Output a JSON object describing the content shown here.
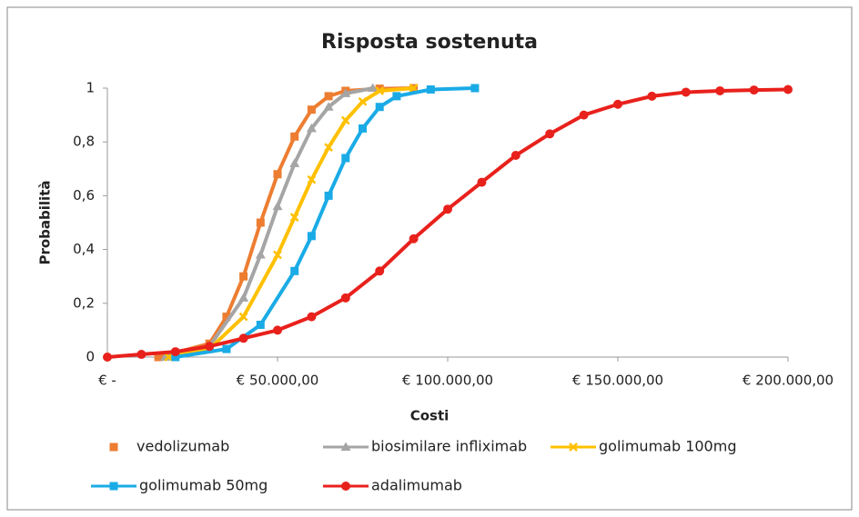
{
  "chart_data": {
    "type": "line",
    "title": "Risposta sostenuta",
    "xlabel": "Costi",
    "ylabel": "Probabilità",
    "xlim": [
      0,
      200000
    ],
    "ylim": [
      0,
      1
    ],
    "xticks": [
      {
        "value": 0,
        "label": "€ -"
      },
      {
        "value": 50000,
        "label": "€ 50.000,00"
      },
      {
        "value": 100000,
        "label": "€ 100.000,00"
      },
      {
        "value": 150000,
        "label": "€ 150.000,00"
      },
      {
        "value": 200000,
        "label": "€ 200.000,00"
      }
    ],
    "yticks": [
      0,
      {
        "value": 0.2,
        "label": "0,2"
      },
      {
        "value": 0.4,
        "label": "0,4"
      },
      {
        "value": 0.6,
        "label": "0,6"
      },
      {
        "value": 0.8,
        "label": "0,8"
      },
      1
    ],
    "series": [
      {
        "name": "vedolizumab",
        "color": "#ed7d31",
        "marker": "square",
        "legend_line": false,
        "x": [
          15000,
          30000,
          35000,
          40000,
          45000,
          50000,
          55000,
          60000,
          65000,
          70000,
          80000,
          90000
        ],
        "values": [
          0,
          0.05,
          0.15,
          0.3,
          0.5,
          0.68,
          0.82,
          0.92,
          0.97,
          0.99,
          0.998,
          1
        ]
      },
      {
        "name": "biosimilare infliximab",
        "color": "#a5a5a5",
        "marker": "triangle",
        "legend_line": true,
        "x": [
          17000,
          30000,
          40000,
          45000,
          50000,
          55000,
          60000,
          65000,
          70000,
          78000
        ],
        "values": [
          0,
          0.04,
          0.22,
          0.38,
          0.56,
          0.72,
          0.85,
          0.93,
          0.98,
          1
        ]
      },
      {
        "name": "golimumab 100mg",
        "color": "#ffc000",
        "marker": "x",
        "legend_line": true,
        "x": [
          18000,
          30000,
          40000,
          50000,
          55000,
          60000,
          65000,
          70000,
          75000,
          80000,
          90000
        ],
        "values": [
          0,
          0.03,
          0.15,
          0.38,
          0.52,
          0.66,
          0.78,
          0.88,
          0.95,
          0.99,
          1
        ]
      },
      {
        "name": "golimumab 50mg",
        "color": "#1aabe6",
        "marker": "square",
        "legend_line": true,
        "x": [
          20000,
          35000,
          45000,
          55000,
          60000,
          65000,
          70000,
          75000,
          80000,
          85000,
          95000,
          108000
        ],
        "values": [
          0,
          0.03,
          0.12,
          0.32,
          0.45,
          0.6,
          0.74,
          0.85,
          0.93,
          0.97,
          0.995,
          1
        ]
      },
      {
        "name": "adalimumab",
        "color": "#e8211c",
        "marker": "circle",
        "legend_line": true,
        "x": [
          0,
          10000,
          20000,
          30000,
          40000,
          50000,
          60000,
          70000,
          80000,
          90000,
          100000,
          110000,
          120000,
          130000,
          140000,
          150000,
          160000,
          170000,
          180000,
          190000,
          200000
        ],
        "values": [
          0,
          0.01,
          0.02,
          0.04,
          0.07,
          0.1,
          0.15,
          0.22,
          0.32,
          0.44,
          0.55,
          0.65,
          0.75,
          0.83,
          0.9,
          0.94,
          0.97,
          0.985,
          0.99,
          0.993,
          0.995
        ]
      }
    ]
  }
}
